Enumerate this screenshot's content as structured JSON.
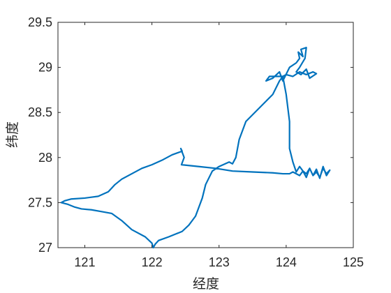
{
  "chart_data": {
    "type": "line",
    "title": "",
    "xlabel": "经度",
    "ylabel": "纬度",
    "xlim": [
      120.6,
      125
    ],
    "ylim": [
      27,
      29.5
    ],
    "xticks": [
      "121",
      "122",
      "123",
      "124",
      "125"
    ],
    "yticks": [
      "27",
      "27.5",
      "28",
      "28.5",
      "29",
      "29.5"
    ],
    "grid": false,
    "color": "#0072BD",
    "series": [
      {
        "x": [
          120.65,
          120.7,
          120.8,
          121.0,
          121.2,
          121.35,
          121.45,
          121.55,
          121.7,
          121.85,
          122.0,
          122.15,
          122.3,
          122.45,
          122.43,
          122.48,
          122.44,
          122.44,
          122.7,
          122.95,
          123.2,
          123.5,
          123.8,
          123.95,
          124.05,
          124.1,
          124.2,
          124.25,
          124.3,
          124.35,
          124.4,
          124.45,
          124.5,
          124.55,
          124.6,
          124.65,
          124.6,
          124.55,
          124.5,
          124.45,
          124.4,
          124.35,
          124.3,
          124.25,
          124.2,
          124.15,
          124.1,
          124.05,
          124.05,
          124.0,
          123.95,
          123.75,
          123.7,
          123.8,
          123.9,
          123.95,
          124.05,
          124.15,
          124.2,
          124.18,
          124.25,
          124.22,
          124.3,
          124.28,
          124.2,
          124.15,
          124.22,
          124.3,
          124.35,
          124.45,
          124.4,
          124.3,
          124.2,
          124.1,
          124.0,
          123.95,
          123.9,
          123.8,
          123.6,
          123.4,
          123.3,
          123.25,
          123.2,
          123.15,
          123.0,
          122.9,
          122.8,
          122.75,
          122.7,
          122.65,
          122.6,
          122.55,
          122.45,
          122.25,
          122.1,
          122.05,
          122.02,
          122.0,
          121.9,
          121.7,
          121.55,
          121.4,
          121.25,
          121.1,
          120.95,
          120.85,
          120.75,
          120.65
        ],
        "y": [
          27.5,
          27.52,
          27.54,
          27.55,
          27.57,
          27.62,
          27.7,
          27.76,
          27.82,
          27.88,
          27.92,
          27.97,
          28.03,
          28.07,
          28.1,
          28.0,
          27.92,
          27.92,
          27.9,
          27.88,
          27.85,
          27.84,
          27.83,
          27.82,
          27.82,
          27.84,
          27.8,
          27.85,
          27.78,
          27.88,
          27.8,
          27.87,
          27.77,
          27.9,
          27.8,
          27.86,
          27.82,
          27.88,
          27.78,
          27.84,
          27.8,
          27.88,
          27.82,
          27.85,
          27.9,
          27.84,
          27.95,
          28.1,
          28.4,
          28.7,
          28.9,
          28.9,
          28.85,
          28.88,
          28.95,
          28.85,
          29.0,
          29.05,
          29.1,
          29.17,
          29.12,
          29.2,
          29.22,
          29.1,
          29.0,
          28.95,
          28.92,
          28.98,
          28.88,
          28.93,
          28.95,
          28.92,
          28.95,
          28.9,
          28.92,
          28.9,
          28.85,
          28.7,
          28.55,
          28.4,
          28.2,
          28.0,
          27.93,
          27.95,
          27.9,
          27.85,
          27.7,
          27.55,
          27.45,
          27.35,
          27.3,
          27.25,
          27.18,
          27.12,
          27.08,
          27.04,
          27.0,
          27.05,
          27.12,
          27.2,
          27.3,
          27.38,
          27.4,
          27.42,
          27.43,
          27.45,
          27.48,
          27.5
        ]
      }
    ]
  }
}
